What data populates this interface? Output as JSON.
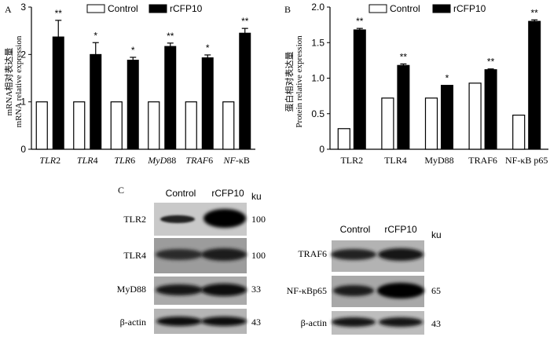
{
  "figure": {
    "panel_a_letter": "A",
    "panel_b_letter": "B",
    "panel_c_letter": "C"
  },
  "chart_data": [
    {
      "type": "bar",
      "panel": "A",
      "ylabel_cn": "mRNA相对表达量",
      "ylabel_en": "mRNA relative expression",
      "ylim": [
        0,
        3
      ],
      "yticks": [
        "0",
        "1",
        "2",
        "3"
      ],
      "categories": [
        {
          "italic": "TLR",
          "plain": "2"
        },
        {
          "italic": "TLR",
          "plain": "4"
        },
        {
          "italic": "TLR",
          "plain": "6"
        },
        {
          "italic": "MyD",
          "plain": "88"
        },
        {
          "italic": "TRAF",
          "plain": "6"
        },
        {
          "italic": "NF",
          "plain": "-κB"
        }
      ],
      "legend": [
        "Control",
        "rCFP10"
      ],
      "series": [
        {
          "name": "Control",
          "values": [
            1,
            1,
            1,
            1,
            1,
            1
          ],
          "errors": [
            0,
            0,
            0,
            0,
            0,
            0
          ]
        },
        {
          "name": "rCFP10",
          "values": [
            2.37,
            2.0,
            1.88,
            2.17,
            1.93,
            2.45
          ],
          "errors": [
            0.35,
            0.25,
            0.06,
            0.07,
            0.06,
            0.1
          ]
        }
      ],
      "significance": [
        "**",
        "*",
        "*",
        "**",
        "*",
        "**"
      ]
    },
    {
      "type": "bar",
      "panel": "B",
      "ylabel_cn": "蛋白相对表达量",
      "ylabel_en": "Protein relative expression",
      "ylim": [
        0,
        2.0
      ],
      "yticks": [
        "0",
        "0.5",
        "1.0",
        "1.5",
        "2.0"
      ],
      "categories": [
        "TLR2",
        "TLR4",
        "MyD88",
        "TRAF6",
        "NF-κB p65"
      ],
      "legend": [
        "Control",
        "rCFP10"
      ],
      "series": [
        {
          "name": "Control",
          "values": [
            0.29,
            0.72,
            0.72,
            0.93,
            0.48
          ],
          "errors": [
            0,
            0,
            0,
            0.01,
            0
          ]
        },
        {
          "name": "rCFP10",
          "values": [
            1.68,
            1.18,
            0.9,
            1.12,
            1.8
          ],
          "errors": [
            0.02,
            0.02,
            0,
            0.01,
            0.02
          ]
        }
      ],
      "significance": [
        "**",
        "**",
        "*",
        "**",
        "**"
      ]
    }
  ],
  "blots": {
    "left": {
      "headers": [
        "Control",
        "rCFP10"
      ],
      "unit": "ku",
      "rows": [
        {
          "label": "TLR2",
          "kd": "100"
        },
        {
          "label": "TLR4",
          "kd": "100"
        },
        {
          "label": "MyD88",
          "kd": "33"
        },
        {
          "label": "β-actin",
          "kd": "43"
        }
      ]
    },
    "right": {
      "headers": [
        "Control",
        "rCFP10"
      ],
      "unit": "ku",
      "rows": [
        {
          "label": "TRAF6",
          "kd": ""
        },
        {
          "label": "NF-κBp65",
          "kd": "65"
        },
        {
          "label": "β-actin",
          "kd": "43"
        }
      ]
    }
  }
}
